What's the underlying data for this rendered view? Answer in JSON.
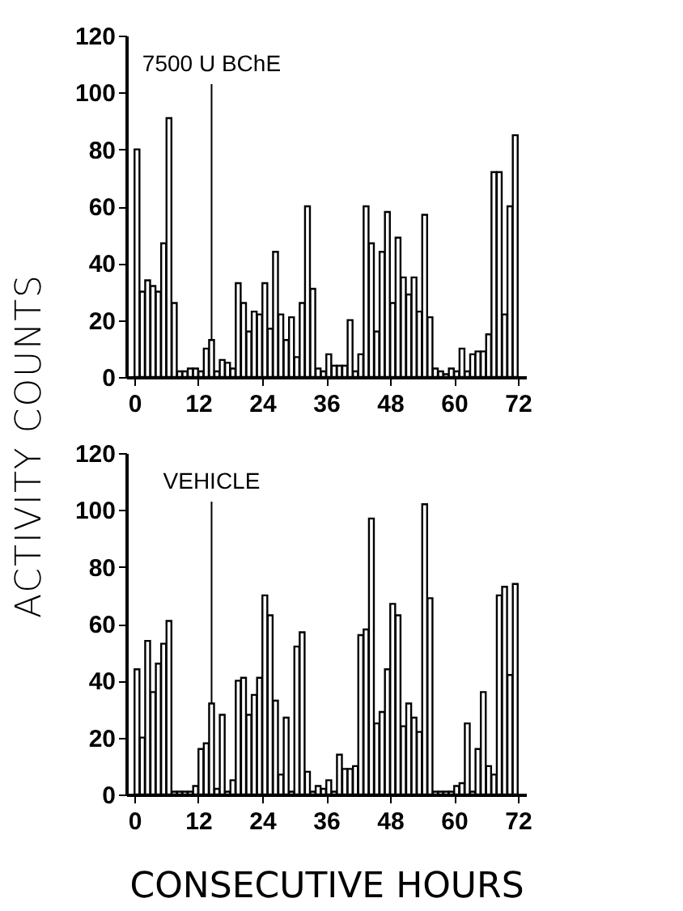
{
  "chart_data": [
    {
      "type": "bar",
      "ylabel": "ACTIVITY COUNTS",
      "annotations": [
        {
          "text": "7500 U BChE",
          "x": 14.5,
          "y": 13
        }
      ],
      "x": [
        0.5,
        1.5,
        2.5,
        3.5,
        4.5,
        5.5,
        6.5,
        7.5,
        8.5,
        9.5,
        10.5,
        11.5,
        12.5,
        13.5,
        14.5,
        15.5,
        16.5,
        17.5,
        18.5,
        19.5,
        20.5,
        21.5,
        22.5,
        23.5,
        24.5,
        25.5,
        26.5,
        27.5,
        28.5,
        29.5,
        30.5,
        31.5,
        32.5,
        33.5,
        34.5,
        35.5,
        36.5,
        37.5,
        38.5,
        39.5,
        40.5,
        41.5,
        42.5,
        43.5,
        44.5,
        45.5,
        46.5,
        47.5,
        48.5,
        49.5,
        50.5,
        51.5,
        52.5,
        53.5,
        54.5,
        55.5,
        56.5,
        57.5,
        58.5,
        59.5,
        60.5,
        61.5,
        62.5,
        63.5,
        64.5,
        65.5,
        66.5,
        67.5,
        68.5,
        69.5,
        70.5,
        71.5
      ],
      "series": [
        {
          "color": "#ffffff",
          "values": [
            80,
            30,
            34,
            32,
            30,
            47,
            91,
            26,
            2,
            2,
            3,
            3,
            2,
            10,
            13,
            2,
            6,
            5,
            3,
            33,
            26,
            16,
            23,
            22,
            33,
            17,
            44,
            22,
            13,
            21,
            7,
            26,
            60,
            31,
            3,
            2,
            8,
            4,
            4,
            4,
            20,
            2,
            8,
            60,
            47,
            16,
            44,
            58,
            26,
            49,
            35,
            29,
            35,
            23,
            57,
            21,
            3,
            2,
            1,
            3,
            2,
            10,
            2,
            8,
            9,
            9,
            15,
            72,
            72,
            22,
            60,
            85
          ]
        }
      ],
      "xlim": [
        0,
        72
      ],
      "xticks": [
        0,
        12,
        24,
        36,
        48,
        60,
        72
      ],
      "ylim": [
        0,
        120
      ],
      "yticks": [
        0,
        20,
        40,
        60,
        80,
        100,
        120
      ],
      "grid": false
    },
    {
      "type": "bar",
      "xlabel": "CONSECUTIVE HOURS",
      "annotations": [
        {
          "text": "VEHICLE",
          "x": 14.5,
          "y": 32
        }
      ],
      "x": [
        0.5,
        1.5,
        2.5,
        3.5,
        4.5,
        5.5,
        6.5,
        7.5,
        8.5,
        9.5,
        10.5,
        11.5,
        12.5,
        13.5,
        14.5,
        15.5,
        16.5,
        17.5,
        18.5,
        19.5,
        20.5,
        21.5,
        22.5,
        23.5,
        24.5,
        25.5,
        26.5,
        27.5,
        28.5,
        29.5,
        30.5,
        31.5,
        32.5,
        33.5,
        34.5,
        35.5,
        36.5,
        37.5,
        38.5,
        39.5,
        40.5,
        41.5,
        42.5,
        43.5,
        44.5,
        45.5,
        46.5,
        47.5,
        48.5,
        49.5,
        50.5,
        51.5,
        52.5,
        53.5,
        54.5,
        55.5,
        56.5,
        57.5,
        58.5,
        59.5,
        60.5,
        61.5,
        62.5,
        63.5,
        64.5,
        65.5,
        66.5,
        67.5,
        68.5,
        69.5,
        70.5,
        71.5
      ],
      "series": [
        {
          "color": "#ffffff",
          "values": [
            44,
            20,
            54,
            36,
            46,
            53,
            61,
            1,
            1,
            1,
            1,
            3,
            16,
            18,
            32,
            2,
            28,
            1,
            5,
            40,
            41,
            28,
            35,
            41,
            70,
            63,
            33,
            7,
            27,
            1,
            52,
            57,
            8,
            1,
            3,
            2,
            5,
            1,
            14,
            9,
            9,
            10,
            56,
            58,
            97,
            25,
            29,
            44,
            67,
            63,
            24,
            32,
            27,
            22,
            102,
            69,
            1,
            1,
            1,
            1,
            3,
            4,
            25,
            1,
            16,
            36,
            10,
            7,
            70,
            73,
            42,
            74
          ]
        }
      ],
      "xlim": [
        0,
        72
      ],
      "xticks": [
        0,
        12,
        24,
        36,
        48,
        60,
        72
      ],
      "ylim": [
        0,
        120
      ],
      "yticks": [
        0,
        20,
        40,
        60,
        80,
        100,
        120
      ],
      "grid": false
    }
  ]
}
